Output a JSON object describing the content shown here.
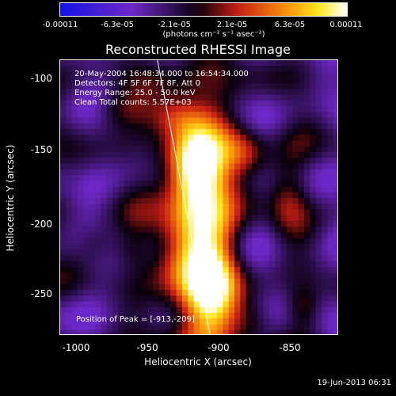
{
  "chart_data": {
    "type": "heatmap",
    "title": "Reconstructed RHESSI Image",
    "xlabel": "Heliocentric X (arcsec)",
    "ylabel": "Heliocentric Y (arcsec)",
    "xlim": [
      -1010,
      -815
    ],
    "ylim": [
      -280,
      -85
    ],
    "x_ticks": [
      "-1000",
      "-950",
      "-900",
      "-850"
    ],
    "y_ticks": [
      "-100",
      "-150",
      "-200",
      "-250"
    ],
    "colorbar": {
      "ticks": [
        "-0.00011",
        "-6.3e-05",
        "-2.1e-05",
        "2.1e-05",
        "6.3e-05",
        "0.00011"
      ],
      "units": "(photons cm⁻² s⁻¹ asec⁻²)",
      "range": [
        -0.00011,
        0.00011
      ]
    },
    "annotations": {
      "time": "20-May-2004 16:48:34.000 to 16:54:34.000",
      "detectors": "Detectors: 4F 5F 6F 7F 8F, Att 0",
      "energy": "Energy Range: 25.0 - 50.0 keV",
      "clean": "Clean    Total counts: 5.57E+03",
      "peak": "Position of Peak = [-913,-209]"
    },
    "peak_position": [
      -913,
      -209
    ],
    "limb_line": {
      "x": [
        -942,
        -905
      ],
      "y": [
        -85,
        -280
      ]
    }
  },
  "footer": "19-Jun-2013 06:31"
}
